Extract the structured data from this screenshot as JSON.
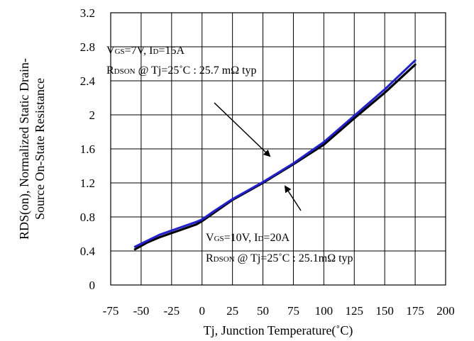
{
  "chart_data": {
    "type": "line",
    "xlabel": "Tj, Junction Temperature(˚C)",
    "ylabel_line1": "RDS(on), Normalized Static Drain-",
    "ylabel_line2": "Source On-State Resistance",
    "xlim": [
      -75,
      200
    ],
    "ylim": [
      0,
      3.2
    ],
    "xticks": [
      "-75",
      "-50",
      "-25",
      "0",
      "25",
      "50",
      "75",
      "100",
      "125",
      "150",
      "175",
      "200"
    ],
    "yticks": [
      "0",
      "0.4",
      "0.8",
      "1.2",
      "1.6",
      "2",
      "2.4",
      "2.8",
      "3.2"
    ],
    "grid": true,
    "series": [
      {
        "color": "#000000",
        "x": [
          -55,
          -45,
          -35,
          -25,
          -15,
          -5,
          0,
          10,
          25,
          50,
          75,
          100,
          125,
          150,
          175
        ],
        "y": [
          0.42,
          0.5,
          0.56,
          0.61,
          0.66,
          0.71,
          0.75,
          0.85,
          1.0,
          1.2,
          1.42,
          1.65,
          1.96,
          2.26,
          2.59
        ]
      },
      {
        "color": "#1f1fd6",
        "x": [
          -55,
          -45,
          -35,
          -25,
          -15,
          -5,
          0,
          10,
          25,
          50,
          75,
          100,
          125,
          150,
          175
        ],
        "y": [
          0.45,
          0.52,
          0.59,
          0.64,
          0.69,
          0.74,
          0.77,
          0.87,
          1.01,
          1.21,
          1.43,
          1.68,
          1.99,
          2.3,
          2.64
        ]
      }
    ],
    "annotations": [
      {
        "line1": {
          "v": "V",
          "vsub": "GS",
          "mid": "=7V, I",
          "isub": "D",
          "end": "=15A"
        },
        "line2": {
          "r": "R",
          "rsub": "DSON",
          "rest": " @ Tj=25˚C : 25.7 mΩ typ"
        }
      },
      {
        "line1": {
          "v": "V",
          "vsub": "GS",
          "mid": "=10V, I",
          "isub": "D",
          "end": "=20A"
        },
        "line2": {
          "r": "R",
          "rsub": "DSON",
          "rest": " @ Tj=25˚C : 25.1mΩ typ"
        }
      }
    ]
  }
}
